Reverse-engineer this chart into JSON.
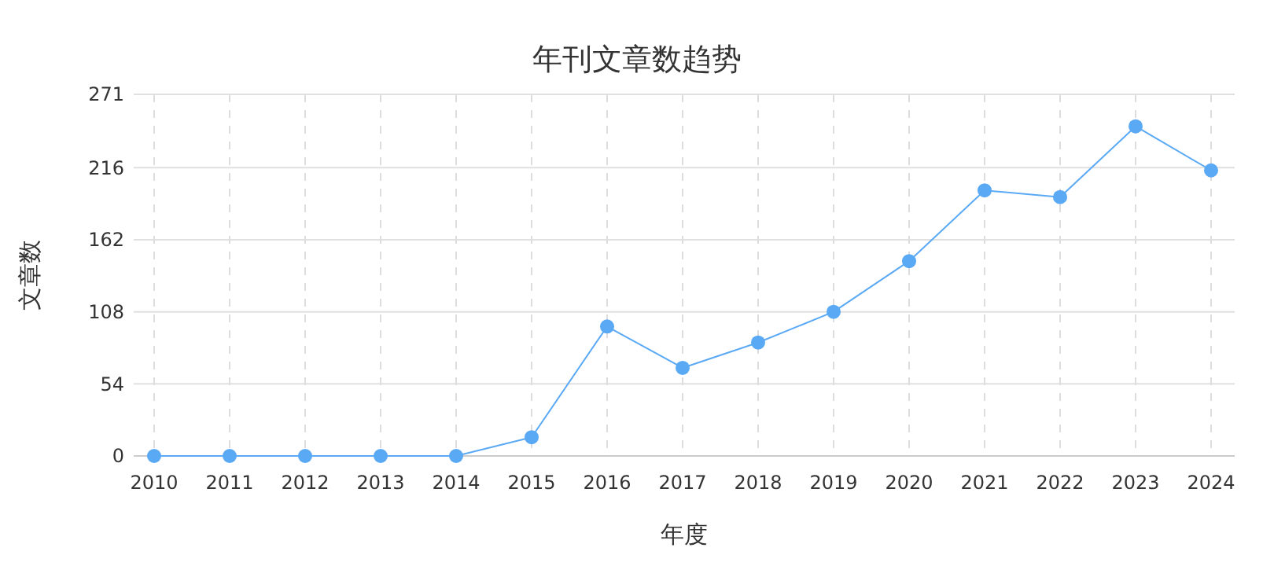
{
  "chart_data": {
    "type": "line",
    "title": "年刊文章数趋势",
    "xlabel": "年度",
    "ylabel": "文章数",
    "categories": [
      "2010",
      "2011",
      "2012",
      "2013",
      "2014",
      "2015",
      "2016",
      "2017",
      "2018",
      "2019",
      "2020",
      "2021",
      "2022",
      "2023",
      "2024"
    ],
    "series": [
      {
        "color": "#5aa9f5",
        "values": [
          0,
          0,
          0,
          0,
          0,
          14,
          97,
          66,
          85,
          108,
          146,
          199,
          194,
          247,
          214
        ]
      }
    ],
    "ylim": [
      0,
      271
    ],
    "yticks": [
      0,
      54,
      108,
      162,
      216,
      271
    ],
    "grid": true,
    "marker": "circle",
    "line_style": "solid"
  }
}
